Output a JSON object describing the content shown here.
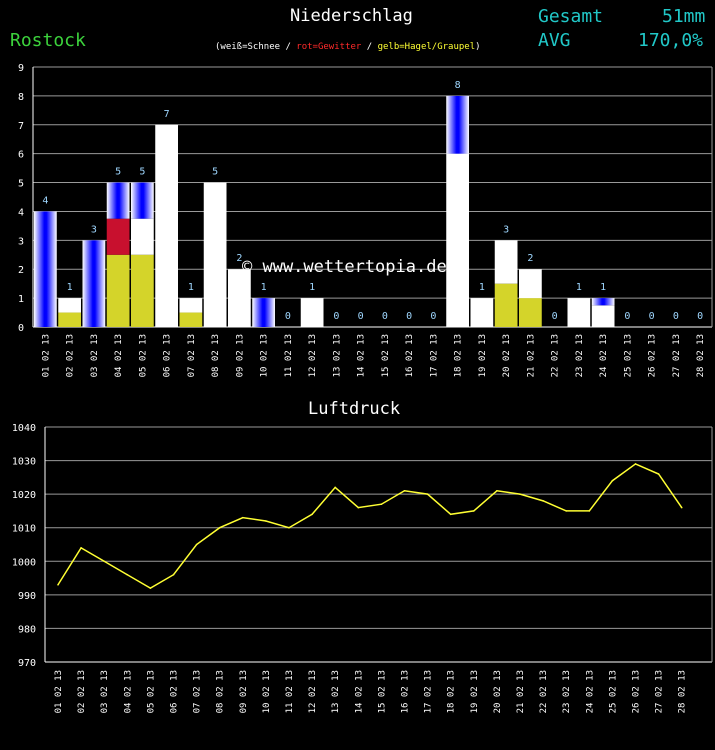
{
  "header": {
    "title": "Niederschlag",
    "station": "Rostock",
    "legend": {
      "white": "weiß=Schnee",
      "sep1": " / ",
      "red": "rot=Gewitter",
      "sep2": " / ",
      "yellow": "gelb=Hagel/Graupel",
      "open": "(",
      "close": ")"
    },
    "total_label": "Gesamt",
    "total_value": "51mm",
    "avg_label": "AVG",
    "avg_value": "170,0%"
  },
  "watermark": "© www.wettertopia.de",
  "colors": {
    "rain": "#0000ff",
    "snow": "#ffffff",
    "thunder": "#c8102e",
    "hail": "#d4d42a",
    "pressure_line": "#ffff33",
    "grid": "#9a9a9a",
    "axis": "#ffffff",
    "value_label": "#9fd7ff"
  },
  "chart_data": [
    {
      "type": "bar",
      "title": "Niederschlag",
      "categories": [
        "01 02 13",
        "02 02 13",
        "03 02 13",
        "04 02 13",
        "05 02 13",
        "06 02 13",
        "07 02 13",
        "08 02 13",
        "09 02 13",
        "10 02 13",
        "11 02 13",
        "12 02 13",
        "13 02 13",
        "14 02 13",
        "15 02 13",
        "16 02 13",
        "17 02 13",
        "18 02 13",
        "19 02 13",
        "20 02 13",
        "21 02 13",
        "22 02 13",
        "23 02 13",
        "24 02 13",
        "25 02 13",
        "26 02 13",
        "27 02 13",
        "28 02 13"
      ],
      "values": [
        4,
        1,
        3,
        5,
        5,
        7,
        1,
        5,
        2,
        1,
        0,
        1,
        0,
        0,
        0,
        0,
        0,
        8,
        1,
        3,
        2,
        0,
        1,
        1,
        0,
        0,
        0,
        0
      ],
      "composition": [
        {
          "rain": 4
        },
        {
          "hail": 0.5,
          "snow": 0.5
        },
        {
          "rain": 3
        },
        {
          "hail": 2.5,
          "thunder": 1.25,
          "rain": 1.25
        },
        {
          "hail": 2.5,
          "snow": 1.25,
          "rain": 1.25
        },
        {
          "snow": 7
        },
        {
          "hail": 0.5,
          "snow": 0.5
        },
        {
          "snow": 5
        },
        {
          "snow": 2
        },
        {
          "rain": 1
        },
        {},
        {
          "snow": 1
        },
        {},
        {},
        {},
        {},
        {},
        {
          "snow": 6,
          "rain": 2
        },
        {
          "snow": 1
        },
        {
          "hail": 1.5,
          "snow": 1.5
        },
        {
          "hail": 1,
          "snow": 1
        },
        {},
        {
          "snow": 1
        },
        {
          "snow": 0.75,
          "rain": 0.25
        },
        {},
        {},
        {},
        {}
      ],
      "ylim": [
        0,
        9
      ],
      "yticks": [
        0,
        1,
        2,
        3,
        4,
        5,
        6,
        7,
        8,
        9
      ],
      "grid": true
    },
    {
      "type": "line",
      "title": "Luftdruck",
      "categories": [
        "01 02 13",
        "02 02 13",
        "03 02 13",
        "04 02 13",
        "05 02 13",
        "06 02 13",
        "07 02 13",
        "08 02 13",
        "09 02 13",
        "10 02 13",
        "11 02 13",
        "12 02 13",
        "13 02 13",
        "14 02 13",
        "15 02 13",
        "16 02 13",
        "17 02 13",
        "18 02 13",
        "19 02 13",
        "20 02 13",
        "21 02 13",
        "22 02 13",
        "23 02 13",
        "24 02 13",
        "25 02 13",
        "26 02 13",
        "27 02 13",
        "28 02 13"
      ],
      "values": [
        993,
        1004,
        1000,
        996,
        992,
        996,
        1005,
        1010,
        1013,
        1012,
        1010,
        1014,
        1022,
        1016,
        1017,
        1021,
        1020,
        1014,
        1015,
        1021,
        1020,
        1018,
        1015,
        1015,
        1024,
        1029,
        1026,
        1016
      ],
      "ylim": [
        970,
        1040
      ],
      "yticks": [
        970,
        980,
        990,
        1000,
        1010,
        1020,
        1030,
        1040
      ],
      "grid": true
    }
  ]
}
